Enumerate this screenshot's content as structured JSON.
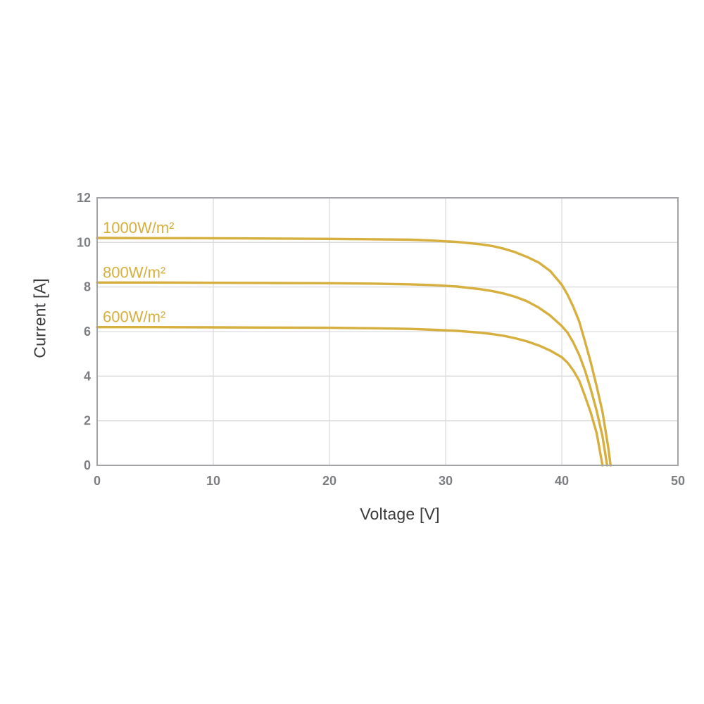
{
  "page": {
    "background": "#ffffff"
  },
  "chart_data": {
    "type": "line",
    "title": "",
    "xlabel": "Voltage [V]",
    "ylabel": "Current [A]",
    "xlim": [
      0,
      50
    ],
    "ylim": [
      0,
      12
    ],
    "xticks": [
      0,
      10,
      20,
      30,
      40,
      50
    ],
    "yticks": [
      0,
      2,
      4,
      6,
      8,
      10,
      12
    ],
    "grid": true,
    "legend_position": "inline-labels-above-curves",
    "line_color": "#d6af3e",
    "grid_color": "#dbdcdd",
    "frame_color": "#a2a4a7",
    "tick_label_color": "#7c7e81",
    "axis_title_color": "#3a3a3c",
    "series": [
      {
        "id": "1000wm2",
        "label": "1000W/m²",
        "isc_A": 10.2,
        "voc_V": 44.2,
        "points": [
          [
            0,
            10.2
          ],
          [
            4,
            10.19
          ],
          [
            8,
            10.19
          ],
          [
            12,
            10.18
          ],
          [
            16,
            10.17
          ],
          [
            20,
            10.16
          ],
          [
            24,
            10.14
          ],
          [
            27,
            10.12
          ],
          [
            29,
            10.08
          ],
          [
            31,
            10.02
          ],
          [
            33,
            9.92
          ],
          [
            34,
            9.84
          ],
          [
            35,
            9.72
          ],
          [
            36,
            9.56
          ],
          [
            37,
            9.35
          ],
          [
            38,
            9.1
          ],
          [
            39,
            8.72
          ],
          [
            40,
            8.1
          ],
          [
            40.5,
            7.65
          ],
          [
            41,
            7.1
          ],
          [
            41.5,
            6.45
          ],
          [
            42,
            5.55
          ],
          [
            42.5,
            4.6
          ],
          [
            43,
            3.55
          ],
          [
            43.5,
            2.4
          ],
          [
            44,
            0.8
          ],
          [
            44.2,
            0
          ]
        ]
      },
      {
        "id": "800wm2",
        "label": "800W/m²",
        "isc_A": 8.2,
        "voc_V": 43.9,
        "points": [
          [
            0,
            8.2
          ],
          [
            5,
            8.2
          ],
          [
            10,
            8.19
          ],
          [
            15,
            8.18
          ],
          [
            20,
            8.17
          ],
          [
            24,
            8.15
          ],
          [
            27,
            8.12
          ],
          [
            29,
            8.08
          ],
          [
            31,
            8.02
          ],
          [
            33,
            7.9
          ],
          [
            34,
            7.82
          ],
          [
            35,
            7.71
          ],
          [
            36,
            7.56
          ],
          [
            37,
            7.36
          ],
          [
            38,
            7.08
          ],
          [
            39,
            6.72
          ],
          [
            40,
            6.25
          ],
          [
            40.5,
            5.95
          ],
          [
            41,
            5.5
          ],
          [
            41.5,
            4.95
          ],
          [
            42,
            4.25
          ],
          [
            42.5,
            3.4
          ],
          [
            43,
            2.45
          ],
          [
            43.5,
            1.3
          ],
          [
            43.9,
            0
          ]
        ]
      },
      {
        "id": "600wm2",
        "label": "600W/m²",
        "isc_A": 6.2,
        "voc_V": 43.5,
        "points": [
          [
            0,
            6.2
          ],
          [
            5,
            6.2
          ],
          [
            10,
            6.19
          ],
          [
            15,
            6.18
          ],
          [
            20,
            6.17
          ],
          [
            24,
            6.15
          ],
          [
            27,
            6.12
          ],
          [
            29,
            6.08
          ],
          [
            31,
            6.03
          ],
          [
            33,
            5.95
          ],
          [
            34,
            5.89
          ],
          [
            35,
            5.81
          ],
          [
            36,
            5.7
          ],
          [
            37,
            5.56
          ],
          [
            38,
            5.38
          ],
          [
            39,
            5.15
          ],
          [
            40,
            4.85
          ],
          [
            40.5,
            4.6
          ],
          [
            41,
            4.25
          ],
          [
            41.5,
            3.8
          ],
          [
            42,
            3.1
          ],
          [
            42.5,
            2.35
          ],
          [
            43,
            1.45
          ],
          [
            43.5,
            0
          ]
        ]
      }
    ]
  }
}
